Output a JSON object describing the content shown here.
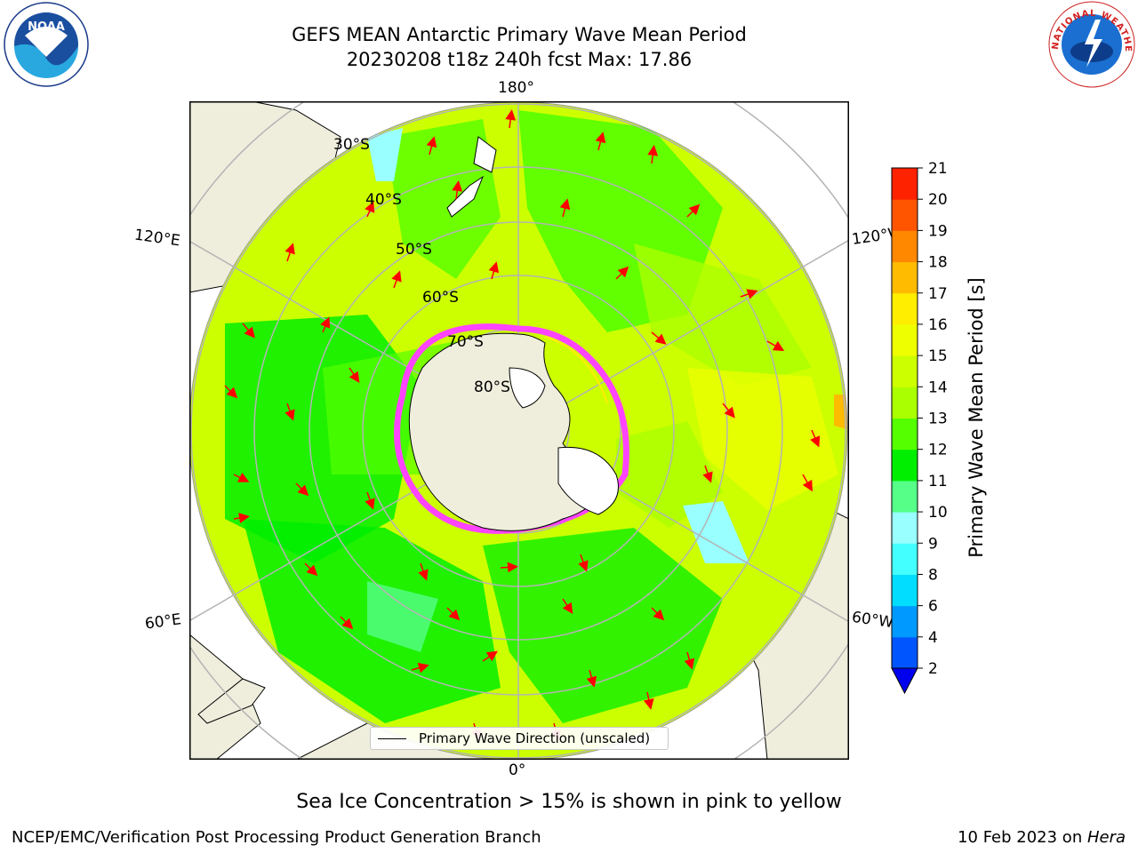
{
  "title": {
    "line1": "GEFS MEAN Antarctic Primary Wave Mean Period",
    "line2": "20230208 t18z 240h fcst   Max: 17.86"
  },
  "map": {
    "projection": "south-polar-stereographic",
    "longitude_labels": {
      "top": "180°",
      "bottom": "0°",
      "upper_left": "120°E",
      "upper_right": "120°W",
      "lower_left": "60°E",
      "lower_right": "60°W"
    },
    "latitude_labels": [
      "30°S",
      "40°S",
      "50°S",
      "60°S",
      "70°S",
      "80°S"
    ],
    "legend": "Primary Wave Direction (unscaled)"
  },
  "colorbar": {
    "label": "Primary Wave Mean Period [s]",
    "ticks": [
      "2",
      "4",
      "6",
      "8",
      "9",
      "10",
      "11",
      "12",
      "13",
      "14",
      "15",
      "16",
      "17",
      "18",
      "19",
      "20",
      "21"
    ],
    "colors": [
      "#0055ff",
      "#0099ff",
      "#00ddff",
      "#44ffff",
      "#99ffff",
      "#55ff88",
      "#00ee00",
      "#55ff00",
      "#aaff00",
      "#ccff00",
      "#eeff00",
      "#ffee00",
      "#ffbb00",
      "#ff8800",
      "#ff5500",
      "#ff2200"
    ],
    "extend_color": "#0000ee"
  },
  "note": "Sea Ice Concentration > 15% is shown in pink to yellow",
  "footer": {
    "left": "NCEP/EMC/Verification Post Processing Product Generation Branch",
    "date": "10 Feb 2023 on ",
    "machine": "Hera"
  },
  "logos": {
    "noaa": "NOAA",
    "nws": "NATIONAL WEATHER SERVICE"
  }
}
